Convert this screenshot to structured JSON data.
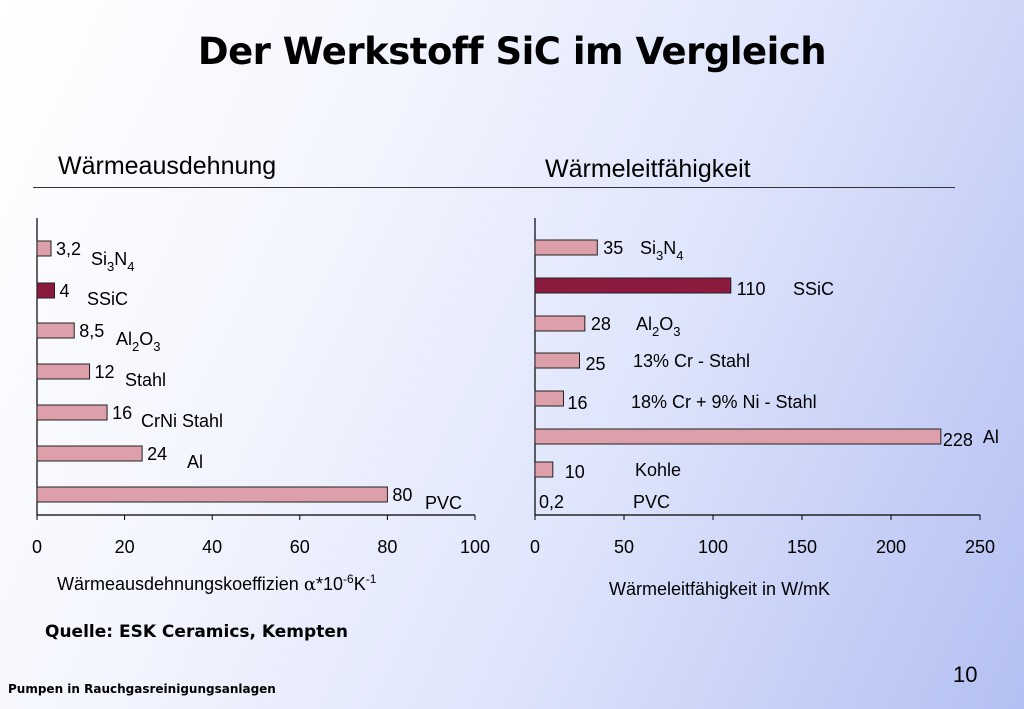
{
  "slide": {
    "title": "Der Werkstoff SiC im Vergleich",
    "source": "Quelle: ESK Ceramics, Kempten",
    "footer": "Pumpen in Rauchgasreinigungsanlagen",
    "page_number": "10"
  },
  "colors": {
    "bar": "#dda0aa",
    "highlight": "#8b1a3e",
    "bar_stroke": "#222222"
  },
  "chart_data": [
    {
      "type": "bar",
      "orientation": "horizontal",
      "title": "Wärmeausdehnung",
      "xlabel_parts": {
        "main": "Wärmeausdehnungskoeffizien ",
        "symbol": "α",
        "unit": "*10",
        "exp1": "-6",
        "unit2": "K",
        "exp2": "-1"
      },
      "xlim": [
        0,
        100
      ],
      "xticks": [
        "0",
        "20",
        "40",
        "60",
        "80",
        "100"
      ],
      "bars": [
        {
          "value": 3.2,
          "value_label": "3,2",
          "cat": "Si",
          "sub1": "3",
          "cat2": "N",
          "sub2": "4",
          "highlight": false
        },
        {
          "value": 4,
          "value_label": "4",
          "cat": "SSiC",
          "highlight": true
        },
        {
          "value": 8.5,
          "value_label": "8,5",
          "cat": "Al",
          "sub1": "2",
          "cat2": "O",
          "sub2": "3",
          "highlight": false
        },
        {
          "value": 12,
          "value_label": "12",
          "cat": "Stahl",
          "highlight": false
        },
        {
          "value": 16,
          "value_label": "16",
          "cat": "CrNi Stahl",
          "highlight": false
        },
        {
          "value": 24,
          "value_label": "24",
          "cat": "Al",
          "highlight": false
        },
        {
          "value": 80,
          "value_label": "80",
          "cat": "PVC",
          "highlight": false
        }
      ]
    },
    {
      "type": "bar",
      "orientation": "horizontal",
      "title": "Wärmeleitfähigkeit",
      "xlabel": "Wärmeleitfähigkeit in W/mK",
      "xlim": [
        0,
        250
      ],
      "xticks": [
        "0",
        "50",
        "100",
        "150",
        "200",
        "250"
      ],
      "bars": [
        {
          "value": 35,
          "value_label": "35",
          "cat": "Si",
          "sub1": "3",
          "cat2": "N",
          "sub2": "4",
          "highlight": false
        },
        {
          "value": 110,
          "value_label": "110",
          "cat": "SSiC",
          "highlight": true
        },
        {
          "value": 28,
          "value_label": "28",
          "cat": "Al",
          "sub1": "2",
          "cat2": "O",
          "sub2": "3",
          "highlight": false
        },
        {
          "value": 25,
          "value_label": "25",
          "cat": "13% Cr - Stahl",
          "highlight": false
        },
        {
          "value": 16,
          "value_label": "16",
          "cat": "18% Cr + 9% Ni - Stahl",
          "highlight": false
        },
        {
          "value": 228,
          "value_label": "228",
          "cat": "Al",
          "highlight": false
        },
        {
          "value": 10,
          "value_label": "10",
          "cat": "Kohle",
          "highlight": false
        },
        {
          "value": 0.2,
          "value_label": "0,2",
          "cat": "PVC",
          "highlight": false
        }
      ]
    }
  ]
}
